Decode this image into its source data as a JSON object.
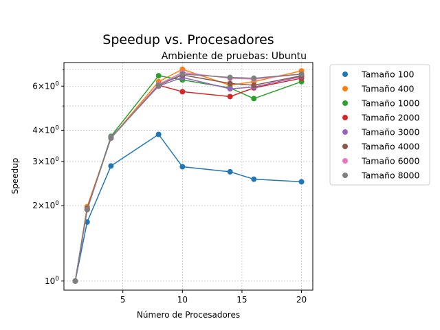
{
  "chart_data": {
    "type": "line",
    "title": "Speedup vs. Procesadores",
    "subtitle": "Ambiente de pruebas: Ubuntu",
    "xlabel": "Número de Procesadores",
    "ylabel": "Speedup",
    "yscale": "log",
    "xlim": [
      0.05,
      20.95
    ],
    "ylim": [
      0.92,
      7.45
    ],
    "xticks": [
      {
        "value": 5,
        "label": "5"
      },
      {
        "value": 10,
        "label": "10"
      },
      {
        "value": 15,
        "label": "15"
      },
      {
        "value": 20,
        "label": "20"
      }
    ],
    "yticks": [
      {
        "value": 1,
        "base": "10",
        "exp": "0"
      },
      {
        "value": 2,
        "base": "2×10",
        "exp": "0"
      },
      {
        "value": 3,
        "base": "3×10",
        "exp": "0"
      },
      {
        "value": 4,
        "base": "4×10",
        "exp": "0"
      },
      {
        "value": 6,
        "base": "6×10",
        "exp": "0"
      }
    ],
    "grid": true,
    "legend_position": "outside-right",
    "x": [
      1,
      2,
      4,
      8,
      10,
      14,
      16,
      20
    ],
    "series": [
      {
        "name": "Tamaño 100",
        "color": "#1f77b4",
        "values": [
          1.0,
          1.72,
          2.88,
          3.85,
          2.86,
          2.73,
          2.55,
          2.49
        ]
      },
      {
        "name": "Tamaño 400",
        "color": "#ff7f0e",
        "values": [
          1.0,
          1.98,
          3.72,
          6.25,
          7.0,
          6.05,
          6.25,
          6.9
        ]
      },
      {
        "name": "Tamaño 1000",
        "color": "#2ca02c",
        "values": [
          1.0,
          1.93,
          3.78,
          6.6,
          6.35,
          5.9,
          5.35,
          6.25
        ]
      },
      {
        "name": "Tamaño 2000",
        "color": "#d62728",
        "values": [
          1.0,
          1.93,
          3.73,
          6.05,
          5.7,
          5.45,
          5.9,
          6.45
        ]
      },
      {
        "name": "Tamaño 3000",
        "color": "#9467bd",
        "values": [
          1.0,
          1.93,
          3.75,
          6.0,
          6.5,
          5.85,
          5.95,
          6.55
        ]
      },
      {
        "name": "Tamaño 4000",
        "color": "#8c564b",
        "values": [
          1.0,
          1.95,
          3.72,
          6.05,
          6.65,
          6.15,
          6.05,
          6.6
        ]
      },
      {
        "name": "Tamaño 6000",
        "color": "#e377c2",
        "values": [
          1.0,
          1.93,
          3.73,
          6.1,
          6.8,
          6.45,
          6.4,
          6.7
        ]
      },
      {
        "name": "Tamaño 8000",
        "color": "#7f7f7f",
        "values": [
          1.0,
          1.93,
          3.73,
          6.05,
          6.7,
          6.5,
          6.45,
          6.7
        ]
      }
    ]
  }
}
